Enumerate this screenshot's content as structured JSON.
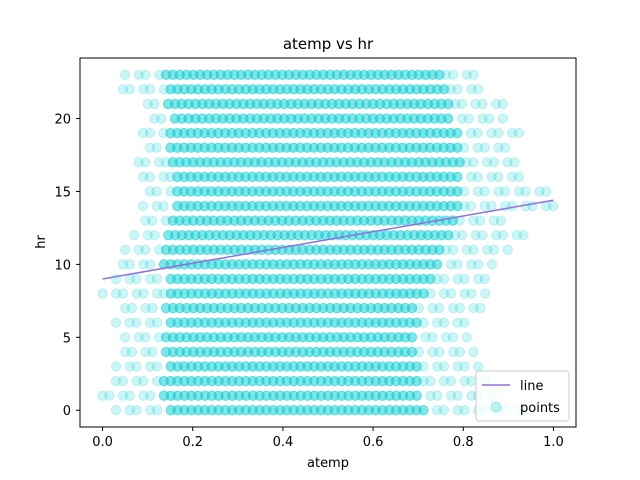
{
  "chart_data": {
    "type": "scatter",
    "title": "atemp vs hr",
    "xlabel": "atemp",
    "ylabel": "hr",
    "xlim": [
      -0.05,
      1.05
    ],
    "ylim": [
      -1.15,
      24.15
    ],
    "xticks": [
      0.0,
      0.2,
      0.4,
      0.6,
      0.8,
      1.0
    ],
    "xtick_labels": [
      "0.0",
      "0.2",
      "0.4",
      "0.6",
      "0.8",
      "1.0"
    ],
    "yticks": [
      0,
      5,
      10,
      15,
      20
    ],
    "ytick_labels": [
      "0",
      "5",
      "10",
      "15",
      "20"
    ],
    "grid": false,
    "legend_position": "lower-right",
    "colors": {
      "points": "#00CED1",
      "line": "#9370DB"
    },
    "series": [
      {
        "name": "points",
        "kind": "scatter",
        "point_alpha": 0.2,
        "rows": [
          {
            "y": 0,
            "x_min": 0.03,
            "x_max": 0.95,
            "dense_min": 0.14,
            "dense_max": 0.72
          },
          {
            "y": 1,
            "x_min": 0.0,
            "x_max": 0.87,
            "dense_min": 0.13,
            "dense_max": 0.7
          },
          {
            "y": 2,
            "x_min": 0.03,
            "x_max": 0.85,
            "dense_min": 0.13,
            "dense_max": 0.7
          },
          {
            "y": 3,
            "x_min": 0.03,
            "x_max": 0.84,
            "dense_min": 0.14,
            "dense_max": 0.7
          },
          {
            "y": 4,
            "x_min": 0.05,
            "x_max": 0.83,
            "dense_min": 0.14,
            "dense_max": 0.7
          },
          {
            "y": 5,
            "x_min": 0.05,
            "x_max": 0.82,
            "dense_min": 0.13,
            "dense_max": 0.7
          },
          {
            "y": 6,
            "x_min": 0.03,
            "x_max": 0.82,
            "dense_min": 0.14,
            "dense_max": 0.7
          },
          {
            "y": 7,
            "x_min": 0.05,
            "x_max": 0.84,
            "dense_min": 0.14,
            "dense_max": 0.7
          },
          {
            "y": 8,
            "x_min": 0.0,
            "x_max": 0.86,
            "dense_min": 0.14,
            "dense_max": 0.72
          },
          {
            "y": 9,
            "x_min": 0.03,
            "x_max": 0.86,
            "dense_min": 0.14,
            "dense_max": 0.74
          },
          {
            "y": 10,
            "x_min": 0.03,
            "x_max": 0.87,
            "dense_min": 0.13,
            "dense_max": 0.75
          },
          {
            "y": 11,
            "x_min": 0.05,
            "x_max": 0.9,
            "dense_min": 0.13,
            "dense_max": 0.76
          },
          {
            "y": 12,
            "x_min": 0.07,
            "x_max": 0.96,
            "dense_min": 0.14,
            "dense_max": 0.77
          },
          {
            "y": 13,
            "x_min": 0.08,
            "x_max": 0.91,
            "dense_min": 0.15,
            "dense_max": 0.78
          },
          {
            "y": 14,
            "x_min": 0.09,
            "x_max": 1.0,
            "dense_min": 0.16,
            "dense_max": 0.79
          },
          {
            "y": 15,
            "x_min": 0.09,
            "x_max": 0.99,
            "dense_min": 0.16,
            "dense_max": 0.8
          },
          {
            "y": 16,
            "x_min": 0.09,
            "x_max": 0.93,
            "dense_min": 0.16,
            "dense_max": 0.8
          },
          {
            "y": 17,
            "x_min": 0.08,
            "x_max": 0.93,
            "dense_min": 0.15,
            "dense_max": 0.8
          },
          {
            "y": 18,
            "x_min": 0.09,
            "x_max": 0.9,
            "dense_min": 0.15,
            "dense_max": 0.8
          },
          {
            "y": 19,
            "x_min": 0.09,
            "x_max": 0.93,
            "dense_min": 0.15,
            "dense_max": 0.79
          },
          {
            "y": 20,
            "x_min": 0.1,
            "x_max": 0.9,
            "dense_min": 0.15,
            "dense_max": 0.78
          },
          {
            "y": 21,
            "x_min": 0.1,
            "x_max": 0.9,
            "dense_min": 0.14,
            "dense_max": 0.77
          },
          {
            "y": 22,
            "x_min": 0.03,
            "x_max": 0.85,
            "dense_min": 0.14,
            "dense_max": 0.76
          },
          {
            "y": 23,
            "x_min": 0.05,
            "x_max": 0.85,
            "dense_min": 0.14,
            "dense_max": 0.75
          }
        ]
      },
      {
        "name": "line",
        "kind": "line",
        "x": [
          0.0,
          1.0
        ],
        "y": [
          9.0,
          14.4
        ]
      }
    ]
  }
}
